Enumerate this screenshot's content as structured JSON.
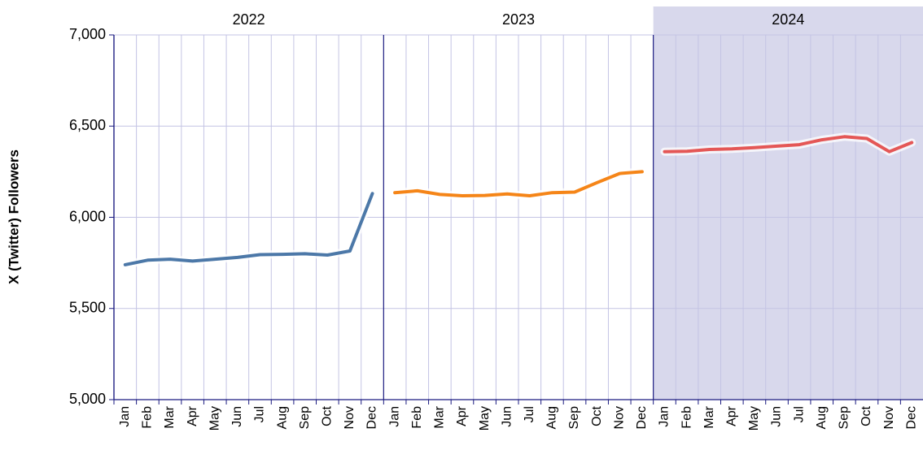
{
  "chart_data": {
    "type": "line",
    "y_label": "X (Twitter) Followers",
    "ylim": [
      5000,
      7000
    ],
    "yticks": [
      {
        "value": 5000,
        "label": "5,000"
      },
      {
        "value": 5500,
        "label": "5,500"
      },
      {
        "value": 6000,
        "label": "6,000"
      },
      {
        "value": 6500,
        "label": "6,500"
      },
      {
        "value": 7000,
        "label": "7,000"
      }
    ],
    "grid": true,
    "categories": [
      "Jan",
      "Feb",
      "Mar",
      "Apr",
      "May",
      "Jun",
      "Jul",
      "Aug",
      "Sep",
      "Oct",
      "Nov",
      "Dec"
    ],
    "panels": [
      {
        "title": "2022",
        "color": "#4c78a8",
        "values": [
          5740,
          5765,
          5770,
          5760,
          5770,
          5780,
          5795,
          5797,
          5800,
          5793,
          5815,
          6130
        ]
      },
      {
        "title": "2023",
        "color": "#f58518",
        "values": [
          6135,
          6145,
          6125,
          6118,
          6120,
          6128,
          6118,
          6135,
          6138,
          6190,
          6240,
          6250
        ]
      },
      {
        "title": "2024",
        "color": "#e45756",
        "background": "#d8d8ec",
        "values": [
          6360,
          6362,
          6372,
          6375,
          6382,
          6390,
          6398,
          6425,
          6442,
          6432,
          6360,
          6410
        ]
      }
    ]
  }
}
